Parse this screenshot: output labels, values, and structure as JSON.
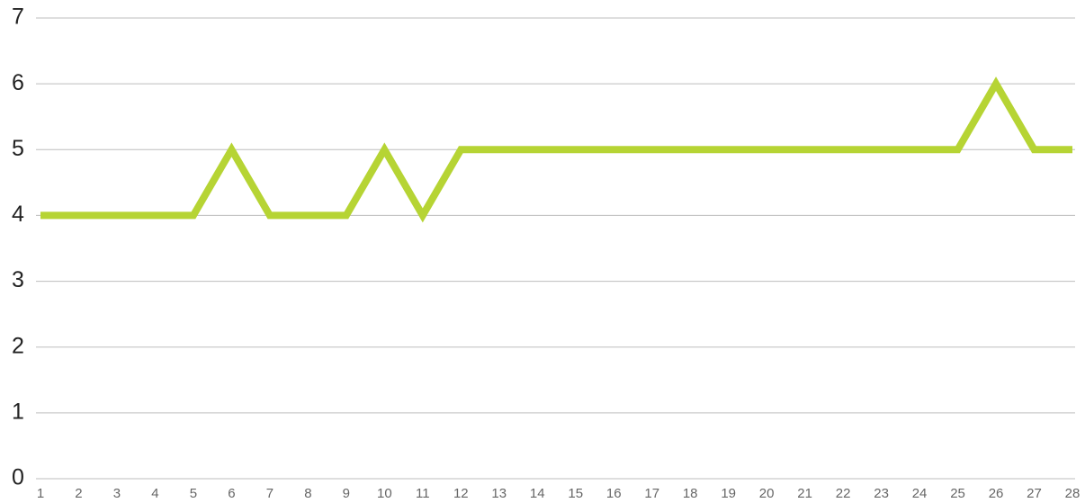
{
  "chart_data": {
    "type": "line",
    "x": [
      1,
      2,
      3,
      4,
      5,
      6,
      7,
      8,
      9,
      10,
      11,
      12,
      13,
      14,
      15,
      16,
      17,
      18,
      19,
      20,
      21,
      22,
      23,
      24,
      25,
      26,
      27,
      28
    ],
    "series": [
      {
        "color": "#b6d434",
        "values": [
          4,
          4,
          4,
          4,
          4,
          5,
          4,
          4,
          4,
          5,
          4,
          5,
          5,
          5,
          5,
          5,
          5,
          5,
          5,
          5,
          5,
          5,
          5,
          5,
          5,
          6,
          5,
          5
        ]
      }
    ],
    "xlim": [
      1,
      28
    ],
    "xticks": [
      1,
      2,
      3,
      4,
      5,
      6,
      7,
      8,
      9,
      10,
      11,
      12,
      13,
      14,
      15,
      16,
      17,
      18,
      19,
      20,
      21,
      22,
      23,
      24,
      25,
      26,
      27,
      28
    ],
    "ylim": [
      0,
      7
    ],
    "yticks": [
      0,
      1,
      2,
      3,
      4,
      5,
      6,
      7
    ],
    "grid": true
  }
}
